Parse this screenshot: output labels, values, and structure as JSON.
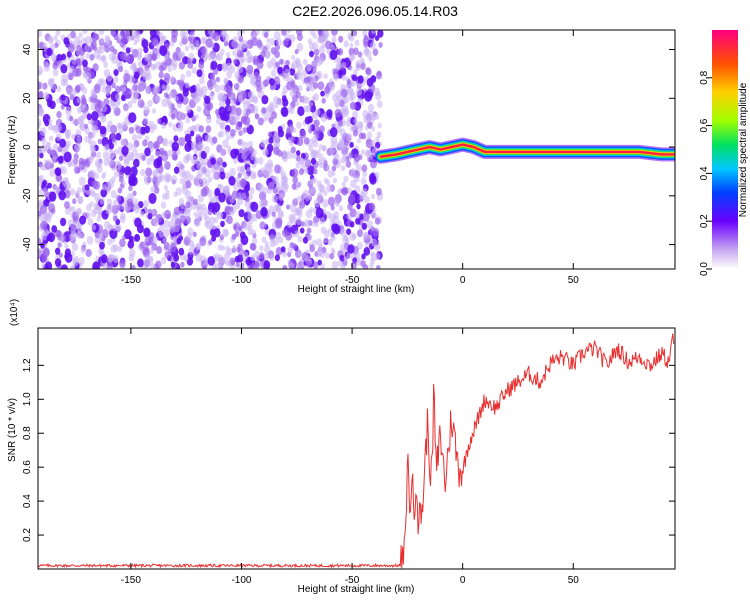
{
  "title": "C2E2.2026.096.05.14.R03",
  "chart_data": [
    {
      "type": "heatmap",
      "xlabel": "Height of straight line (km)",
      "ylabel": "Frequency (Hz)",
      "xlim": [
        -192,
        96
      ],
      "ylim": [
        -50,
        48
      ],
      "xticks": [
        -150,
        -100,
        -50,
        0,
        50
      ],
      "yticks": [
        -40,
        -20,
        0,
        20,
        40
      ],
      "noise_region_x": [
        -192,
        -37
      ],
      "signal_track": {
        "x": [
          -37,
          -30,
          -25,
          -20,
          -15,
          -10,
          -5,
          0,
          5,
          10,
          20,
          30,
          40,
          50,
          60,
          70,
          80,
          90,
          96
        ],
        "y": [
          -4,
          -3,
          -2,
          -1,
          0,
          -1,
          0,
          1,
          0,
          -2,
          -2,
          -2,
          -2,
          -2,
          -2,
          -2,
          -2,
          -3,
          -3
        ]
      },
      "colorbar": {
        "label": "Normalized spectral amplitude",
        "range": [
          0,
          1
        ],
        "ticks": [
          "0.0",
          "0.2",
          "0.4",
          "0.6",
          "0.8"
        ]
      }
    },
    {
      "type": "line",
      "xlabel": "Height of straight line (km)",
      "ylabel": "SNR (10 * v/v)",
      "exponent_label": "(x10⁴)",
      "xlim": [
        -192,
        96
      ],
      "ylim": [
        0,
        1.42
      ],
      "xticks": [
        -150,
        -100,
        -50,
        0,
        50
      ],
      "yticks": [
        "0.2",
        "0.4",
        "0.6",
        "0.8",
        "1.0",
        "1.2"
      ],
      "color": "#e83030",
      "x": [
        -192,
        -40,
        -28,
        -26,
        -25,
        -24,
        -23,
        -22,
        -21,
        -20,
        -18,
        -16,
        -14,
        -13,
        -12,
        -10,
        -8,
        -5,
        -2,
        0,
        3,
        6,
        10,
        15,
        20,
        25,
        30,
        35,
        40,
        45,
        50,
        55,
        60,
        65,
        70,
        75,
        80,
        85,
        90,
        93,
        95,
        96
      ],
      "y": [
        0.02,
        0.02,
        0.02,
        0.1,
        0.7,
        0.35,
        0.55,
        0.3,
        0.6,
        0.25,
        0.4,
        0.85,
        0.5,
        1.08,
        0.55,
        0.8,
        0.5,
        0.9,
        0.6,
        0.58,
        0.75,
        0.85,
        1.0,
        0.95,
        1.05,
        1.1,
        1.15,
        1.1,
        1.22,
        1.25,
        1.2,
        1.28,
        1.3,
        1.2,
        1.3,
        1.22,
        1.25,
        1.2,
        1.27,
        1.22,
        1.35,
        1.3
      ]
    }
  ]
}
